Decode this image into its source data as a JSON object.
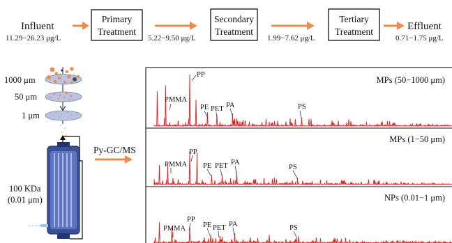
{
  "flow": {
    "influent": {
      "label": "Influent",
      "conc": "11.29−26.23 μg/L"
    },
    "primary": {
      "line1": "Primary",
      "line2": "Treatment",
      "conc": "5.22−9.50 μg/L"
    },
    "secondary": {
      "line1": "Secondary",
      "line2": "Treatment",
      "conc": "1.99−7.62 μg/L"
    },
    "tertiary": {
      "line1": "Tertiary",
      "line2": "Treatment"
    },
    "effluent": {
      "label": "Effluent",
      "conc": "0.71−1.75 μg/L"
    }
  },
  "filtration": {
    "sizes": [
      "1000 μm",
      "50 μm",
      "1 μm"
    ],
    "membrane_line1": "100 KDa",
    "membrane_line2": "(0.01 μm)"
  },
  "method": "Py-GC/MS",
  "panels": [
    {
      "title": "MPs (50−1000 μm)",
      "labels": {
        "PMMA": "PMMA",
        "PP": "PP",
        "PE": "PE",
        "PET": "PET",
        "PA": "PA",
        "PS": "PS"
      }
    },
    {
      "title": "MPs (1−50 μm)",
      "labels": {
        "PMMA": "PMMA",
        "PP": "PP",
        "PE": "PE",
        "PET": "PET",
        "PA": "PA",
        "PS": "PS"
      }
    },
    {
      "title": "NPs (0.01−1 μm)",
      "labels": {
        "PMMA": "PMMA",
        "PP": "PP",
        "PE": "PE",
        "PET": "PET",
        "PA": "PA",
        "PS": "PS"
      }
    }
  ],
  "colors": {
    "arrow": "#ef8a4a",
    "spectrum": "#e0211f",
    "membrane": "#3a4f9a",
    "disk": "#b9c4e4"
  }
}
